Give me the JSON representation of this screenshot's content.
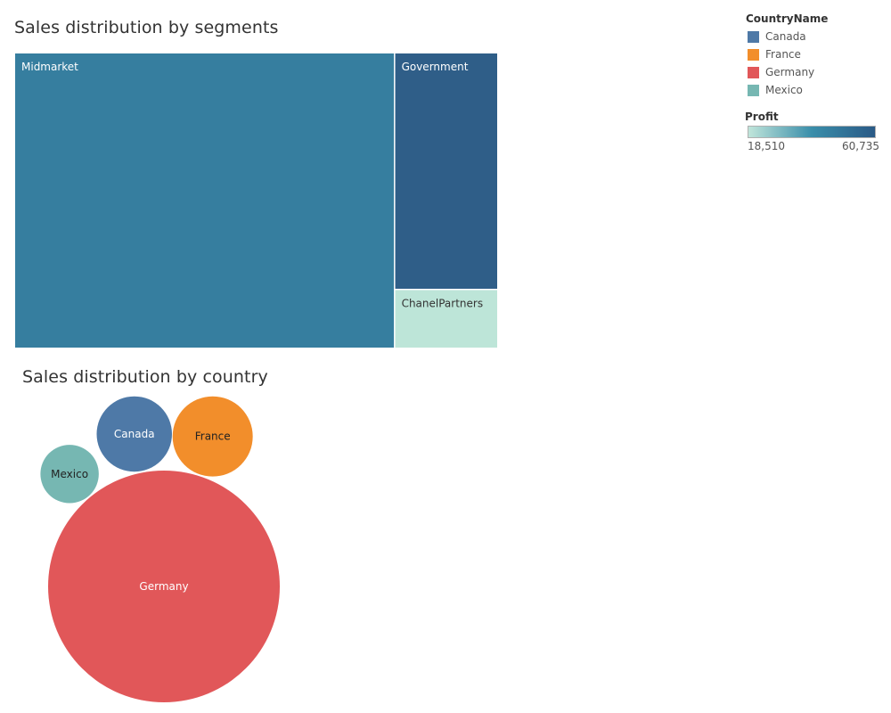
{
  "chart_data": [
    {
      "type": "treemap",
      "title": "Sales distribution by segments",
      "color_legend_title": "Profit",
      "color_range": [
        18510,
        60735
      ],
      "color_range_labels": [
        "18,510",
        "60,735"
      ],
      "color_ramp": [
        "#c0e5da",
        "#3a8eaa",
        "#2a5a86"
      ],
      "segments": [
        {
          "label": "Midmarket",
          "sales": 330,
          "color": "#367e9f"
        },
        {
          "label": "Government",
          "sales": 72,
          "color": "#2f5e88"
        },
        {
          "label": "ChanelPartners",
          "sales": 18,
          "color": "#bde5d8"
        }
      ]
    },
    {
      "type": "bubble",
      "title": "Sales distribution by country",
      "legend_title": "CountryName",
      "countries": [
        {
          "label": "Canada",
          "sales": 15,
          "color": "#4e79a7"
        },
        {
          "label": "France",
          "sales": 17,
          "color": "#f28e2b"
        },
        {
          "label": "Germany",
          "sales": 142,
          "color": "#e15759"
        },
        {
          "label": "Mexico",
          "sales": 9,
          "color": "#76b7b2"
        }
      ]
    }
  ]
}
